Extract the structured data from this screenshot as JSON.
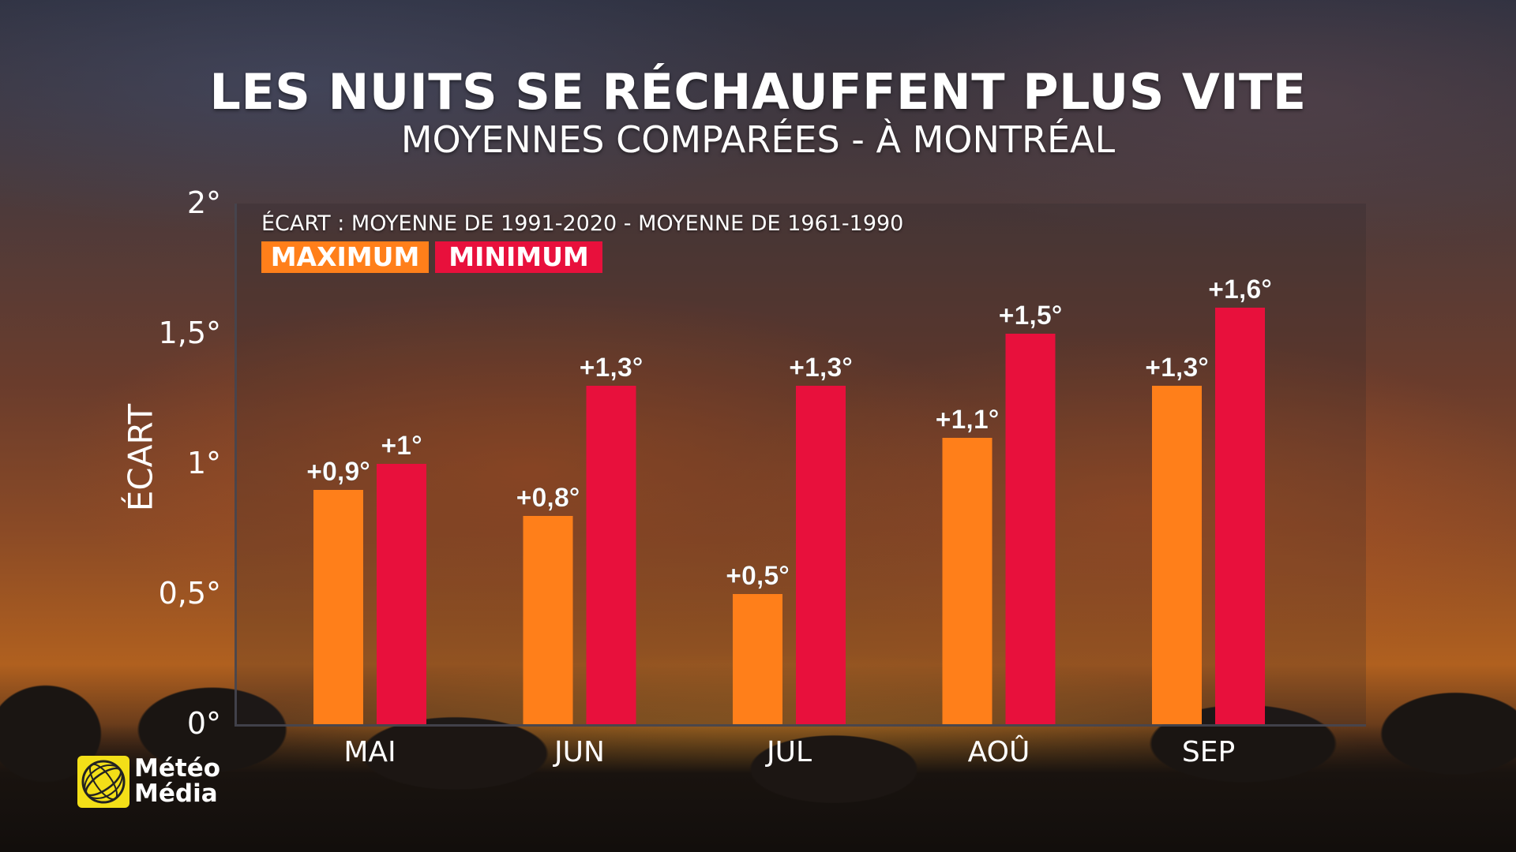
{
  "chart_data": {
    "type": "bar",
    "title": "LES NUITS SE RÉCHAUFFENT PLUS VITE",
    "subtitle": "MOYENNES COMPARÉES - À MONTRÉAL",
    "note": "ÉCART : MOYENNE DE 1991-2020 - MOYENNE DE 1961-1990",
    "xlabel": "",
    "ylabel": "ÉCART",
    "categories": [
      "MAI",
      "JUN",
      "JUL",
      "AOÛ",
      "SEP"
    ],
    "ylim": [
      0,
      2
    ],
    "yticks": [
      0,
      0.5,
      1,
      1.5,
      2
    ],
    "ytick_labels": [
      "0°",
      "0,5°",
      "1°",
      "1,5°",
      "2°"
    ],
    "legend_position": "top-left",
    "series": [
      {
        "name": "MAXIMUM",
        "color": "#ff7f1a",
        "values": [
          0.9,
          0.8,
          0.5,
          1.1,
          1.3
        ],
        "labels": [
          "+0,9°",
          "+0,8°",
          "+0,5°",
          "+1,1°",
          "+1,3°"
        ]
      },
      {
        "name": "MINIMUM",
        "color": "#e8103c",
        "values": [
          1.0,
          1.3,
          1.3,
          1.5,
          1.6
        ],
        "labels": [
          "+1°",
          "+1,3°",
          "+1,3°",
          "+1,5°",
          "+1,6°"
        ]
      }
    ]
  },
  "branding": {
    "logo_line1": "Météo",
    "logo_line2": "Média",
    "logo_color": "#f3df18"
  }
}
